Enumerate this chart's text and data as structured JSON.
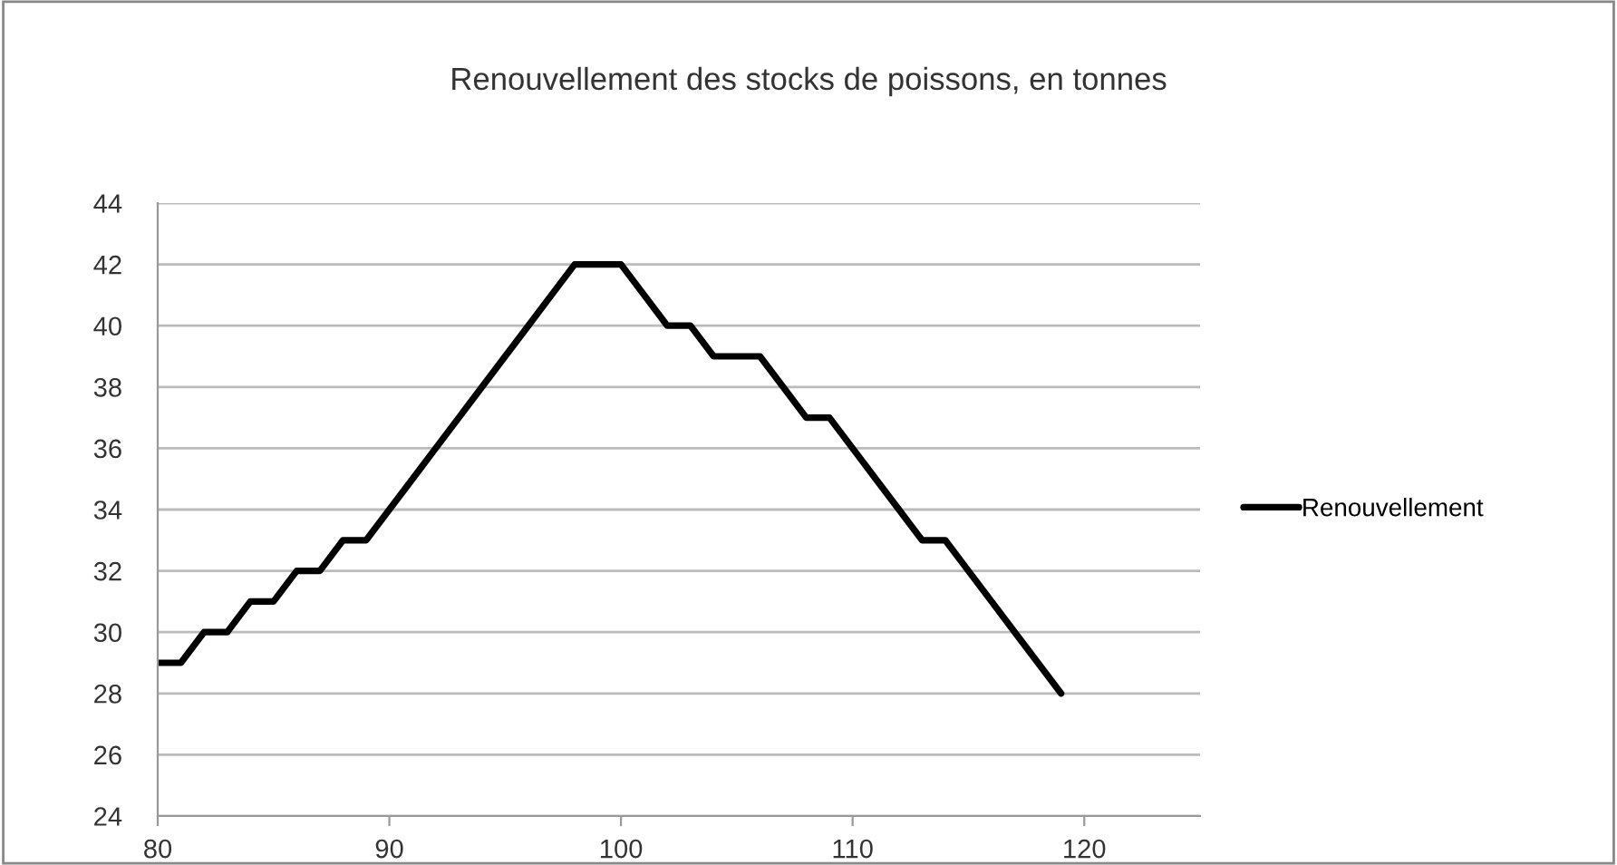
{
  "chart_data": {
    "type": "line",
    "title": "Renouvellement des stocks de poissons, en tonnes",
    "x": [
      80,
      81,
      82,
      83,
      84,
      85,
      86,
      87,
      88,
      89,
      90,
      91,
      92,
      93,
      94,
      95,
      96,
      97,
      98,
      99,
      100,
      101,
      102,
      103,
      104,
      105,
      106,
      107,
      108,
      109,
      110,
      111,
      112,
      113,
      114,
      115,
      116,
      117,
      118,
      119
    ],
    "series": [
      {
        "name": "Renouvellement",
        "color": "#000000",
        "values": [
          29,
          29,
          30,
          30,
          31,
          31,
          32,
          32,
          33,
          33,
          34,
          35,
          36,
          37,
          38,
          39,
          40,
          41,
          42,
          42,
          42,
          41,
          40,
          40,
          39,
          39,
          39,
          38,
          37,
          37,
          36,
          35,
          34,
          33,
          33,
          32,
          31,
          30,
          29,
          28
        ]
      }
    ],
    "xlim": [
      80,
      125
    ],
    "xticks": [
      80,
      90,
      100,
      110,
      120
    ],
    "ylim": [
      24,
      44
    ],
    "yticks": [
      24,
      26,
      28,
      30,
      32,
      34,
      36,
      38,
      40,
      42,
      44
    ],
    "grid": "y",
    "legend": "right",
    "marker": "none",
    "line_style": "solid"
  }
}
